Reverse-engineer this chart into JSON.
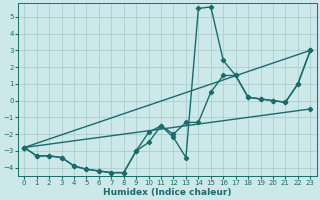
{
  "xlabel": "Humidex (Indice chaleur)",
  "background_color": "#cce8e8",
  "grid_color": "#aacece",
  "line_color": "#1a6b6b",
  "xlim": [
    -0.5,
    23.5
  ],
  "ylim": [
    -4.5,
    5.8
  ],
  "xticks": [
    0,
    1,
    2,
    3,
    4,
    5,
    6,
    7,
    8,
    9,
    10,
    11,
    12,
    13,
    14,
    15,
    16,
    17,
    18,
    19,
    20,
    21,
    22,
    23
  ],
  "yticks": [
    -4,
    -3,
    -2,
    -1,
    0,
    1,
    2,
    3,
    4,
    5
  ],
  "lines": [
    {
      "x": [
        0,
        1,
        2,
        3,
        4,
        5,
        6,
        7,
        8,
        9,
        10,
        11,
        12,
        13,
        14,
        15,
        16,
        17,
        18,
        19,
        20,
        21,
        22,
        23
      ],
      "y": [
        -2.8,
        -3.3,
        -3.3,
        -3.4,
        -3.9,
        -4.1,
        -4.2,
        -4.3,
        -4.3,
        -3.0,
        -2.5,
        -1.5,
        -2.2,
        -3.4,
        5.5,
        5.6,
        2.4,
        1.5,
        0.2,
        0.1,
        0.0,
        -0.1,
        1.0,
        3.0
      ]
    },
    {
      "x": [
        0,
        1,
        2,
        3,
        4,
        5,
        6,
        7,
        8,
        9,
        10,
        11,
        12,
        13,
        14,
        15,
        16,
        17,
        18,
        19,
        20,
        21,
        22,
        23
      ],
      "y": [
        -2.8,
        -3.3,
        -3.3,
        -3.4,
        -3.9,
        -4.1,
        -4.2,
        -4.3,
        -4.3,
        -3.0,
        -1.9,
        -1.5,
        -2.0,
        -1.3,
        -1.3,
        0.5,
        1.5,
        1.5,
        0.2,
        0.1,
        0.0,
        -0.1,
        1.0,
        3.0
      ]
    },
    {
      "x": [
        0,
        23
      ],
      "y": [
        -2.8,
        3.0
      ]
    },
    {
      "x": [
        0,
        23
      ],
      "y": [
        -2.8,
        -0.5
      ]
    }
  ]
}
